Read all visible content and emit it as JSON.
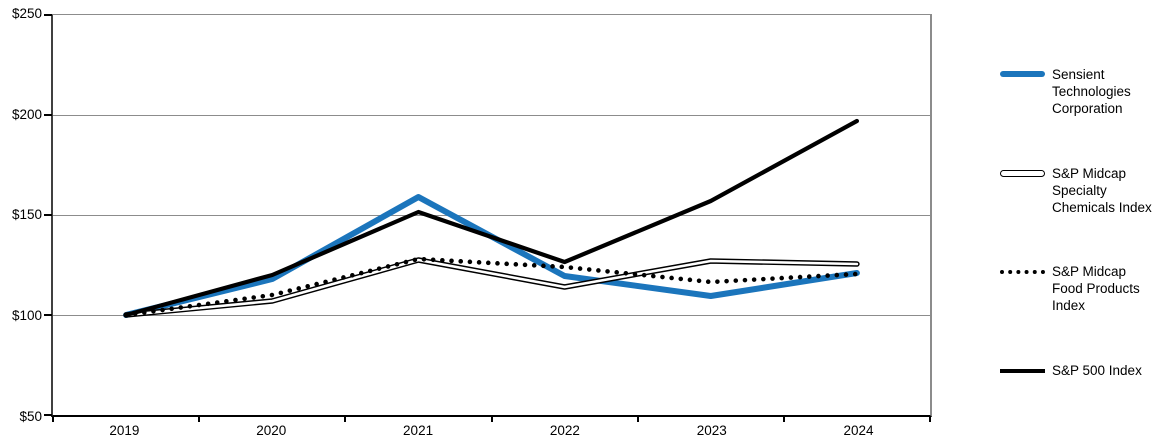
{
  "chart_data": {
    "type": "line",
    "title": "",
    "xlabel": "",
    "ylabel": "",
    "categories": [
      "2019",
      "2020",
      "2021",
      "2022",
      "2023",
      "2024"
    ],
    "ylim": [
      50,
      250
    ],
    "yticks": [
      50,
      100,
      150,
      200,
      250
    ],
    "ytick_labels_top_down": [
      "$250",
      "$200",
      "$150",
      "$100",
      "$50"
    ],
    "grid": "horizontal gridlines every $50",
    "legend_position": "right",
    "background_color": "#ffffff",
    "gridline_color": "#8c8c8c",
    "axis_color": "#000000",
    "series": [
      {
        "name": "Sensient Technologies Corporation",
        "color": "#1b75bc",
        "line_style": "thick-solid",
        "values": [
          100,
          118,
          159,
          119.5,
          109.5,
          121
        ]
      },
      {
        "name": "S&P Midcap Specialty Chemicals Index",
        "color": "#000000",
        "line_style": "double-outline",
        "values": [
          100,
          107,
          127.5,
          114,
          127,
          125.5
        ]
      },
      {
        "name": "S&P Midcap Food Products Index",
        "color": "#000000",
        "line_style": "dotted",
        "values": [
          100,
          110,
          128,
          124,
          116.5,
          120.5
        ]
      },
      {
        "name": "S&P 500 Index",
        "color": "#000000",
        "line_style": "solid",
        "values": [
          100,
          120,
          151.5,
          126.5,
          157,
          197
        ]
      }
    ]
  }
}
